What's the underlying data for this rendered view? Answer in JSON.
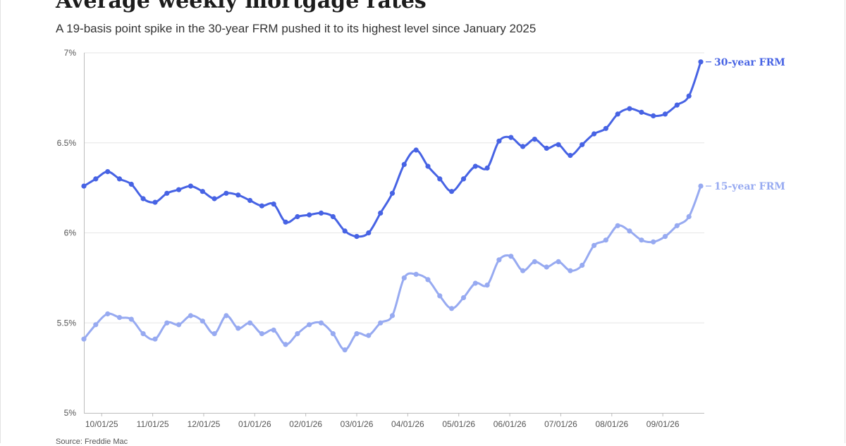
{
  "header": {
    "title": "Average weekly mortgage rates",
    "subtitle": "A 19-basis point spike in the 30-year FRM pushed it to its highest level since January 2025"
  },
  "footer": {
    "source": "Source: Freddie Mac"
  },
  "colors": {
    "frm30": "#4763e4",
    "frm15": "#97aaf1",
    "grid": "#e6e6e6",
    "axis": "#bdbdbd"
  },
  "chart_data": {
    "type": "line",
    "x_tick_labels": [
      "10/01/25",
      "11/01/25",
      "12/01/25",
      "01/01/26",
      "02/01/26",
      "03/01/26",
      "04/01/26",
      "05/01/26",
      "06/01/26",
      "07/01/26",
      "08/01/26",
      "09/01/26"
    ],
    "y_tick_labels": [
      "5%",
      "5.5%",
      "6%",
      "6.5%",
      "7%"
    ],
    "y_ticks": [
      5,
      5.5,
      6,
      6.5,
      7
    ],
    "ylim": [
      5,
      7
    ],
    "grid": true,
    "series": [
      {
        "name": "30-year FRM",
        "color": "#4763e4",
        "values": [
          6.26,
          6.3,
          6.34,
          6.3,
          6.27,
          6.19,
          6.17,
          6.22,
          6.24,
          6.26,
          6.23,
          6.19,
          6.22,
          6.21,
          6.18,
          6.15,
          6.16,
          6.06,
          6.09,
          6.1,
          6.11,
          6.09,
          6.01,
          5.98,
          6.0,
          6.11,
          6.22,
          6.38,
          6.46,
          6.37,
          6.3,
          6.23,
          6.3,
          6.37,
          6.36,
          6.51,
          6.53,
          6.48,
          6.52,
          6.47,
          6.49,
          6.43,
          6.49,
          6.55,
          6.58,
          6.66,
          6.69,
          6.67,
          6.65,
          6.66,
          6.71,
          6.76,
          6.95
        ]
      },
      {
        "name": "15-year FRM",
        "color": "#97aaf1",
        "values": [
          5.41,
          5.49,
          5.55,
          5.53,
          5.52,
          5.44,
          5.41,
          5.5,
          5.49,
          5.54,
          5.51,
          5.44,
          5.54,
          5.47,
          5.5,
          5.44,
          5.46,
          5.38,
          5.44,
          5.49,
          5.5,
          5.44,
          5.35,
          5.44,
          5.43,
          5.5,
          5.54,
          5.75,
          5.77,
          5.74,
          5.65,
          5.58,
          5.64,
          5.72,
          5.71,
          5.85,
          5.87,
          5.79,
          5.84,
          5.81,
          5.84,
          5.79,
          5.82,
          5.93,
          5.96,
          6.04,
          6.01,
          5.96,
          5.95,
          5.98,
          6.04,
          6.09,
          6.26
        ]
      }
    ]
  }
}
